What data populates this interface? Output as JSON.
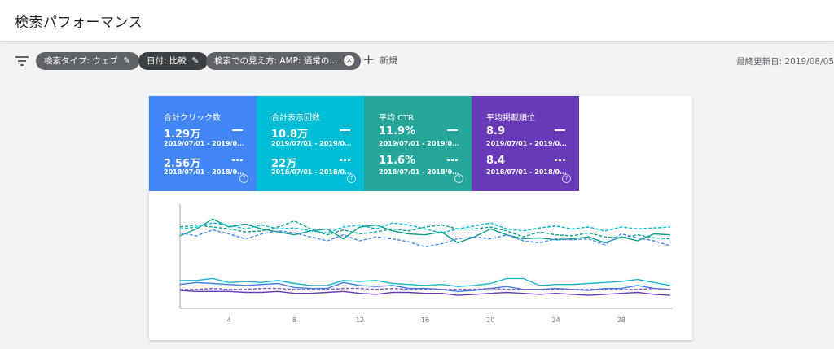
{
  "page_title": "検索パフォーマンス",
  "filters": {
    "chip1": "検索タイプ: ウェブ",
    "chip2": "日付: 比較",
    "chip3": "検索での見え方: AMP: 通常の...",
    "new_label": "新規",
    "last_updated": "最終更新日: 2019/08/05"
  },
  "metrics": [
    {
      "label": "合計クリック数",
      "value_current": "1.29万",
      "range_current": "2019/07/01 - 2019/0...",
      "value_previous": "2.56万",
      "range_previous": "2018/07/01 - 2018/0...",
      "help": "?",
      "color": "#4285f4"
    },
    {
      "label": "合計表示回数",
      "value_current": "10.8万",
      "range_current": "2019/07/01 - 2019/0...",
      "value_previous": "22万",
      "range_previous": "2018/07/01 - 2018/0...",
      "help": "?",
      "color": "#00bcd4"
    },
    {
      "label": "平均 CTR",
      "value_current": "11.9%",
      "range_current": "2019/07/01 - 2019/0...",
      "value_previous": "11.6%",
      "range_previous": "2018/07/01 - 2018/0...",
      "help": "?",
      "color": "#26a69a"
    },
    {
      "label": "平均掲載順位",
      "value_current": "8.9",
      "range_current": "2019/07/01 - 2019/0...",
      "value_previous": "8.4",
      "range_previous": "2018/07/01 - 2018/0...",
      "help": "?",
      "color": "#673ab7"
    }
  ],
  "chart_data": {
    "type": "line",
    "x": [
      1,
      2,
      3,
      4,
      5,
      6,
      7,
      8,
      9,
      10,
      11,
      12,
      13,
      14,
      15,
      16,
      17,
      18,
      19,
      20,
      21,
      22,
      23,
      24,
      25,
      26,
      27,
      28,
      29,
      30,
      31
    ],
    "x_ticks": [
      4,
      8,
      12,
      16,
      20,
      24,
      28
    ],
    "y_scale": "relative (unlabeled; each series on its own hidden axis)",
    "grid": false,
    "series": [
      {
        "metric": "CTR",
        "period": "current",
        "style": "solid",
        "color": "#129e8a",
        "values": [
          0.73,
          0.8,
          0.9,
          0.82,
          0.85,
          0.8,
          0.77,
          0.74,
          0.78,
          0.8,
          0.7,
          0.82,
          0.84,
          0.78,
          0.75,
          0.74,
          0.77,
          0.66,
          0.72,
          0.8,
          0.74,
          0.7,
          0.71,
          0.69,
          0.7,
          0.72,
          0.66,
          0.72,
          0.68,
          0.75,
          0.74
        ]
      },
      {
        "metric": "CTR",
        "period": "previous",
        "style": "dashed",
        "color": "#129e8a",
        "values": [
          0.82,
          0.84,
          0.82,
          0.8,
          0.77,
          0.78,
          0.82,
          0.88,
          0.8,
          0.74,
          0.79,
          0.75,
          0.77,
          0.8,
          0.78,
          0.82,
          0.84,
          0.8,
          0.8,
          0.82,
          0.78,
          0.72,
          0.77,
          0.74,
          0.73,
          0.76,
          0.72,
          0.71,
          0.74,
          0.71,
          0.7
        ]
      },
      {
        "metric": "Clicks",
        "period": "current",
        "style": "solid",
        "color": "#3a7fe0",
        "values": [
          0.24,
          0.26,
          0.25,
          0.24,
          0.23,
          0.24,
          0.25,
          0.21,
          0.2,
          0.2,
          0.26,
          0.23,
          0.22,
          0.23,
          0.2,
          0.2,
          0.19,
          0.17,
          0.18,
          0.2,
          0.22,
          0.19,
          0.19,
          0.2,
          0.19,
          0.18,
          0.2,
          0.2,
          0.23,
          0.2,
          0.19
        ]
      },
      {
        "metric": "Clicks",
        "period": "previous",
        "style": "dashed",
        "color": "#4a8af4",
        "values": [
          0.76,
          0.73,
          0.79,
          0.75,
          0.7,
          0.75,
          0.78,
          0.76,
          0.72,
          0.68,
          0.74,
          0.68,
          0.72,
          0.7,
          0.67,
          0.62,
          0.65,
          0.7,
          0.72,
          0.7,
          0.74,
          0.68,
          0.66,
          0.7,
          0.69,
          0.7,
          0.64,
          0.75,
          0.71,
          0.68,
          0.63
        ]
      },
      {
        "metric": "Impressions",
        "period": "current",
        "style": "solid",
        "color": "#1ab5d2",
        "values": [
          0.28,
          0.28,
          0.3,
          0.26,
          0.27,
          0.26,
          0.28,
          0.25,
          0.23,
          0.23,
          0.28,
          0.27,
          0.28,
          0.25,
          0.24,
          0.23,
          0.24,
          0.22,
          0.23,
          0.25,
          0.3,
          0.3,
          0.23,
          0.24,
          0.24,
          0.25,
          0.26,
          0.27,
          0.29,
          0.26,
          0.23
        ]
      },
      {
        "metric": "Impressions",
        "period": "previous",
        "style": "dashed",
        "color": "#00bcd4",
        "values": [
          0.8,
          0.82,
          0.86,
          0.84,
          0.8,
          0.84,
          0.8,
          0.81,
          0.78,
          0.76,
          0.82,
          0.84,
          0.8,
          0.86,
          0.84,
          0.8,
          0.76,
          0.8,
          0.83,
          0.86,
          0.8,
          0.78,
          0.81,
          0.83,
          0.8,
          0.82,
          0.78,
          0.82,
          0.8,
          0.81,
          0.82
        ]
      },
      {
        "metric": "Position",
        "period": "current",
        "style": "solid",
        "color": "#673ab7",
        "values": [
          0.18,
          0.17,
          0.17,
          0.17,
          0.16,
          0.16,
          0.17,
          0.15,
          0.15,
          0.16,
          0.17,
          0.15,
          0.14,
          0.16,
          0.16,
          0.15,
          0.15,
          0.13,
          0.14,
          0.15,
          0.16,
          0.15,
          0.14,
          0.15,
          0.14,
          0.13,
          0.14,
          0.15,
          0.16,
          0.14,
          0.13
        ]
      },
      {
        "metric": "Position",
        "period": "previous",
        "style": "dashed",
        "color": "#7e57c2",
        "values": [
          0.19,
          0.19,
          0.2,
          0.19,
          0.19,
          0.2,
          0.2,
          0.19,
          0.19,
          0.19,
          0.2,
          0.2,
          0.19,
          0.2,
          0.19,
          0.19,
          0.19,
          0.19,
          0.19,
          0.2,
          0.19,
          0.19,
          0.19,
          0.19,
          0.19,
          0.19,
          0.19,
          0.19,
          0.19,
          0.2,
          0.19
        ]
      }
    ]
  }
}
